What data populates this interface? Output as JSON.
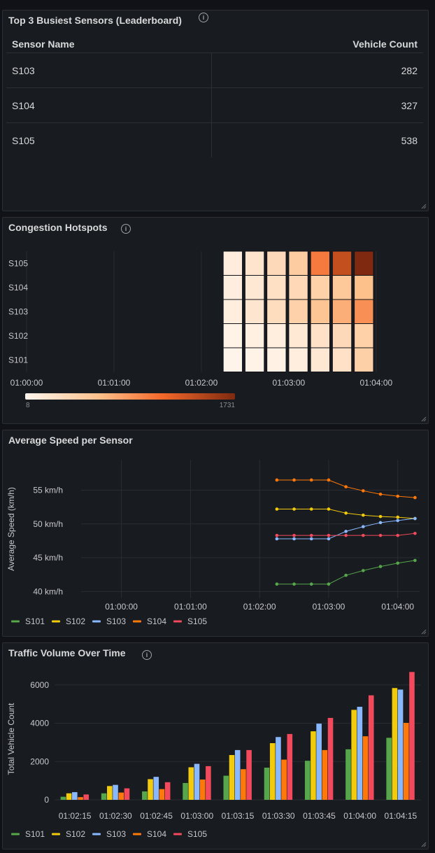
{
  "panels": {
    "leaderboard": {
      "title": "Top 3 Busiest Sensors (Leaderboard)",
      "columns": [
        "Sensor Name",
        "Vehicle Count"
      ],
      "rows": [
        {
          "sensor": "S103",
          "count": "282"
        },
        {
          "sensor": "S104",
          "count": "327"
        },
        {
          "sensor": "S105",
          "count": "538"
        }
      ]
    },
    "heatmap": {
      "title": "Congestion Hotspots",
      "scale_min": "8",
      "scale_max": "1731"
    },
    "speed": {
      "title": "Average Speed per Sensor"
    },
    "volume": {
      "title": "Traffic Volume Over Time"
    }
  },
  "colors": {
    "S101": "#56a64b",
    "S102": "#f2cc0c",
    "S103": "#8ab8ff",
    "S104": "#ff780a",
    "S105": "#f2495c"
  },
  "chart_data": [
    {
      "type": "heatmap",
      "title": "Congestion Hotspots",
      "y_categories": [
        "S101",
        "S102",
        "S103",
        "S104",
        "S105"
      ],
      "x_ticks": [
        "01:00:00",
        "01:01:00",
        "01:02:00",
        "01:03:00",
        "01:04:00"
      ],
      "x_range": [
        "01:00:00",
        "01:04:26"
      ],
      "columns": [
        "01:02:15",
        "01:02:30",
        "01:02:45",
        "01:03:00",
        "01:03:15",
        "01:03:30",
        "01:03:45"
      ],
      "values": {
        "S105": [
          110,
          210,
          330,
          480,
          1030,
          1380,
          1731
        ],
        "S104": [
          90,
          160,
          250,
          340,
          430,
          520,
          610
        ],
        "S103": [
          100,
          190,
          300,
          420,
          560,
          720,
          900
        ],
        "S102": [
          40,
          70,
          100,
          150,
          240,
          330,
          430
        ],
        "S101": [
          20,
          40,
          60,
          100,
          160,
          240,
          440
        ]
      },
      "scale": {
        "min": 8,
        "max": 1731
      }
    },
    {
      "type": "line",
      "title": "Average Speed per Sensor",
      "ylabel": "Average Speed (km/h)",
      "y_ticks": [
        "40 km/h",
        "45 km/h",
        "50 km/h",
        "55 km/h"
      ],
      "y_range": [
        39,
        59.5
      ],
      "x_ticks": [
        "01:00:00",
        "01:01:00",
        "01:02:00",
        "01:03:00",
        "01:04:00"
      ],
      "x_range": [
        "00:59:25",
        "01:04:19"
      ],
      "x": [
        "01:02:15",
        "01:02:30",
        "01:02:45",
        "01:03:00",
        "01:03:15",
        "01:03:30",
        "01:03:45",
        "01:04:00",
        "01:04:15"
      ],
      "series": [
        {
          "name": "S101",
          "values": [
            41.1,
            41.1,
            41.1,
            41.1,
            42.4,
            43.1,
            43.7,
            44.2,
            44.6
          ]
        },
        {
          "name": "S102",
          "values": [
            52.2,
            52.2,
            52.2,
            52.2,
            51.6,
            51.3,
            51.1,
            51.0,
            50.8
          ]
        },
        {
          "name": "S103",
          "values": [
            47.8,
            47.8,
            47.8,
            47.8,
            48.9,
            49.6,
            50.2,
            50.5,
            50.8
          ]
        },
        {
          "name": "S104",
          "values": [
            56.5,
            56.5,
            56.5,
            56.5,
            55.5,
            54.9,
            54.4,
            54.1,
            53.9
          ]
        },
        {
          "name": "S105",
          "values": [
            48.3,
            48.3,
            48.3,
            48.3,
            48.3,
            48.3,
            48.3,
            48.3,
            48.6
          ]
        }
      ],
      "legend": "bottom-left"
    },
    {
      "type": "bar",
      "title": "Traffic Volume Over Time",
      "ylabel": "Total Vehicle Count",
      "y_ticks": [
        "0",
        "2000",
        "4000",
        "6000"
      ],
      "y_range": [
        0,
        6800
      ],
      "categories": [
        "01:02:15",
        "01:02:30",
        "01:02:45",
        "01:03:00",
        "01:03:15",
        "01:03:30",
        "01:03:45",
        "01:04:00",
        "01:04:15"
      ],
      "series": [
        {
          "name": "S101",
          "values": [
            160,
            340,
            440,
            880,
            1260,
            1680,
            2040,
            2640,
            3240
          ]
        },
        {
          "name": "S102",
          "values": [
            340,
            720,
            1080,
            1700,
            2340,
            2960,
            3580,
            4700,
            5840
          ]
        },
        {
          "name": "S103",
          "values": [
            400,
            780,
            1200,
            1880,
            2600,
            3280,
            3980,
            4860,
            5760
          ]
        },
        {
          "name": "S104",
          "values": [
            140,
            380,
            560,
            1060,
            1600,
            2100,
            2600,
            3320,
            4020
          ]
        },
        {
          "name": "S105",
          "values": [
            280,
            600,
            920,
            1760,
            2600,
            3440,
            4280,
            5460,
            6680
          ]
        }
      ],
      "legend": "bottom-left"
    }
  ],
  "legend": [
    "S101",
    "S102",
    "S103",
    "S104",
    "S105"
  ]
}
